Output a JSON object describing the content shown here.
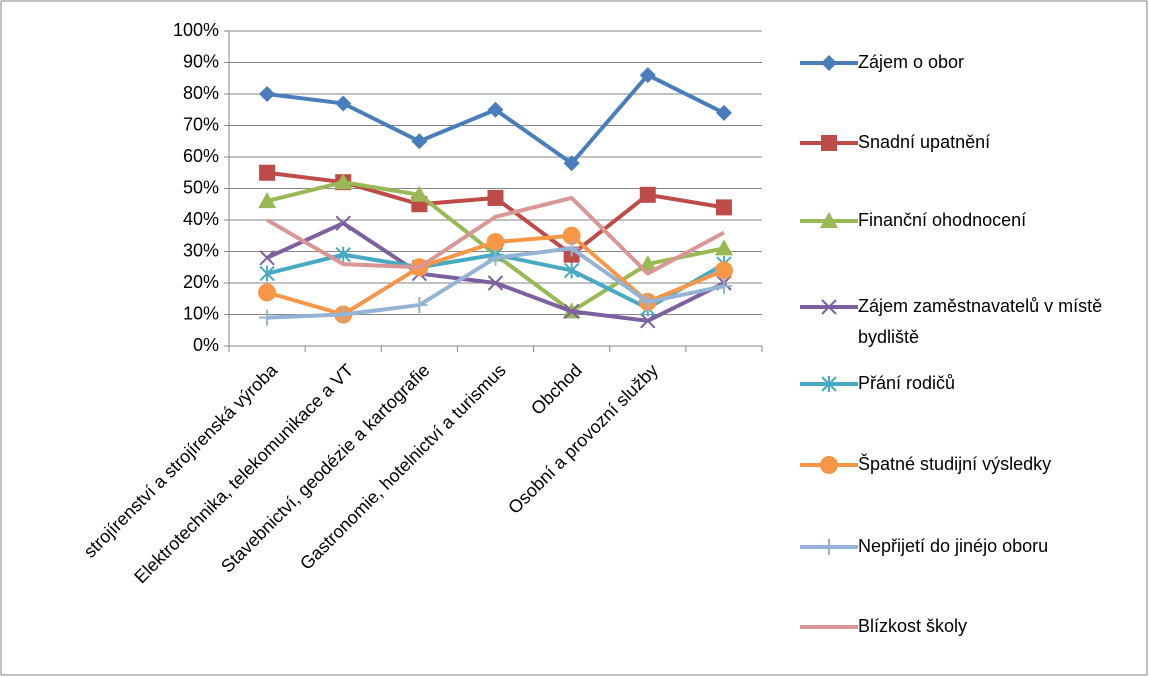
{
  "chart_data": {
    "type": "line",
    "categories": [
      "strojírenství a strojírenská výroba",
      "Elektrotechnika, telekomunikace a VT",
      "Stavebnictví, geodézie a kartografie",
      "Gastronomie, hotelnictví a turismus",
      "Obchod",
      "Osobní a provozní služby",
      null
    ],
    "series": [
      {
        "name": "Zájem o obor",
        "color": "#4a7ebb",
        "marker": "diamond",
        "values": [
          80,
          77,
          65,
          75,
          58,
          86,
          74
        ]
      },
      {
        "name": "Snadní upatnění",
        "color": "#be4b48",
        "marker": "square",
        "values": [
          55,
          52,
          45,
          47,
          29,
          48,
          44
        ]
      },
      {
        "name": "Finanční ohodnocení",
        "color": "#98b954",
        "marker": "triangle",
        "values": [
          46,
          52,
          48,
          29,
          11,
          26,
          31
        ]
      },
      {
        "name": "Zájem zaměstnavatelů v místě bydliště",
        "color": "#7d60a0",
        "marker": "x",
        "values": [
          28,
          39,
          23,
          20,
          11,
          8,
          20
        ]
      },
      {
        "name": "Přání rodičů",
        "color": "#46aac5",
        "marker": "star",
        "values": [
          23,
          29,
          25,
          29,
          24,
          12,
          26
        ]
      },
      {
        "name": "Špatné studijní výsledky",
        "color": "#f79646",
        "marker": "circle",
        "values": [
          17,
          10,
          25,
          33,
          35,
          14,
          24
        ]
      },
      {
        "name": "Nepřijetí do jinéjo oboru",
        "color": "#95b3d7",
        "marker": "plus",
        "values": [
          9,
          10,
          13,
          28,
          31,
          14,
          19
        ]
      },
      {
        "name": "Blízkost školy",
        "color": "#d99694",
        "marker": "none",
        "values": [
          40,
          26,
          25,
          41,
          47,
          23,
          36
        ]
      }
    ],
    "ylim": [
      0,
      100
    ],
    "yticks": [
      {
        "value": 0,
        "label": "0%"
      },
      {
        "value": 10,
        "label": "10%"
      },
      {
        "value": 20,
        "label": "20%"
      },
      {
        "value": 30,
        "label": "30%"
      },
      {
        "value": 40,
        "label": "40%"
      },
      {
        "value": 50,
        "label": "50%"
      },
      {
        "value": 60,
        "label": "60%"
      },
      {
        "value": 70,
        "label": "70%"
      },
      {
        "value": 80,
        "label": "80%"
      },
      {
        "value": 90,
        "label": "90%"
      },
      {
        "value": 100,
        "label": "100%"
      }
    ],
    "grid": true,
    "legend": "right"
  }
}
